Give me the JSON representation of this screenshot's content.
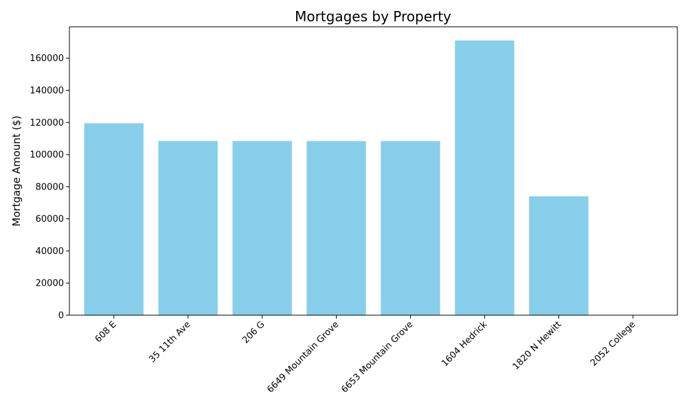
{
  "chart_data": {
    "type": "bar",
    "title": "Mortgages by Property",
    "xlabel": "",
    "ylabel": "Mortgage Amount ($)",
    "categories": [
      "608 E",
      "35 11th Ave",
      "206 G",
      "6649 Mountain Grove",
      "6653 Mountain Grove",
      "1604 Hedrick",
      "1820 N Hewitt",
      "2052 College"
    ],
    "values": [
      119500,
      108400,
      108400,
      108400,
      108400,
      171000,
      74000,
      0
    ],
    "ylim": [
      0,
      179550
    ],
    "yticks": [
      0,
      20000,
      40000,
      60000,
      80000,
      100000,
      120000,
      140000,
      160000
    ],
    "grid": false,
    "bar_color": "#87ceeb"
  }
}
